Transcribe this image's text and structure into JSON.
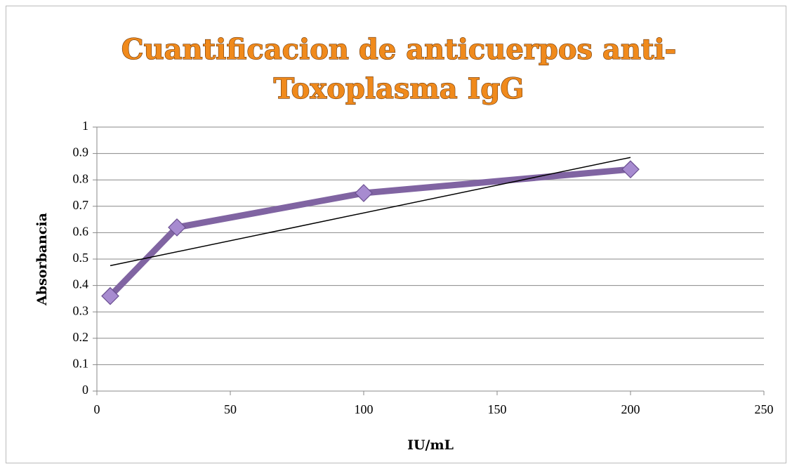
{
  "chart_data": {
    "type": "line",
    "title": [
      "Cuantificacion de anticuerpos anti-",
      "Toxoplasma IgG"
    ],
    "xlabel": "IU/mL",
    "ylabel": "Absorbancia",
    "x": [
      5,
      30,
      100,
      200
    ],
    "series": [
      {
        "color": "#8064a2",
        "values": [
          0.36,
          0.62,
          0.75,
          0.84
        ]
      }
    ],
    "trendline": {
      "x": [
        5,
        200
      ],
      "values": [
        0.475,
        0.885
      ],
      "color": "#000000"
    },
    "xlim": [
      0,
      250
    ],
    "xticks": [
      0,
      50,
      100,
      150,
      200,
      250
    ],
    "ylim": [
      0,
      1
    ],
    "yticks": [
      0,
      0.1,
      0.2,
      0.3,
      0.4,
      0.5,
      0.6,
      0.7,
      0.8,
      0.9,
      1
    ],
    "grid": true
  }
}
